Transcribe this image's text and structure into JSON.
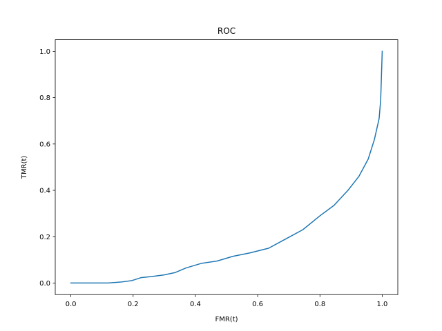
{
  "chart_data": {
    "type": "line",
    "title": "ROC",
    "xlabel": "FMR(t)",
    "ylabel": "TMR(t)",
    "xlim": [
      -0.05,
      1.05
    ],
    "ylim": [
      -0.05,
      1.05
    ],
    "xticks": [
      0.0,
      0.2,
      0.4,
      0.6,
      0.8,
      1.0
    ],
    "yticks": [
      0.0,
      0.2,
      0.4,
      0.6,
      0.8,
      1.0
    ],
    "xtick_labels": [
      "0.0",
      "0.2",
      "0.4",
      "0.6",
      "0.8",
      "1.0"
    ],
    "ytick_labels": [
      "0.0",
      "0.2",
      "0.4",
      "0.6",
      "0.8",
      "1.0"
    ],
    "grid": false,
    "legend": "none",
    "series": [
      {
        "color": "#1f77b4",
        "x": [
          0.0,
          0.04,
          0.08,
          0.12,
          0.16,
          0.195,
          0.225,
          0.26,
          0.3,
          0.335,
          0.37,
          0.42,
          0.47,
          0.52,
          0.575,
          0.635,
          0.69,
          0.745,
          0.8,
          0.845,
          0.89,
          0.925,
          0.955,
          0.975,
          0.99,
          0.995,
          1.0
        ],
        "y": [
          0.0,
          0.0,
          0.0,
          0.0,
          0.004,
          0.01,
          0.023,
          0.028,
          0.035,
          0.045,
          0.065,
          0.085,
          0.095,
          0.115,
          0.13,
          0.15,
          0.19,
          0.23,
          0.29,
          0.335,
          0.4,
          0.46,
          0.535,
          0.62,
          0.71,
          0.79,
          1.0
        ]
      }
    ]
  }
}
